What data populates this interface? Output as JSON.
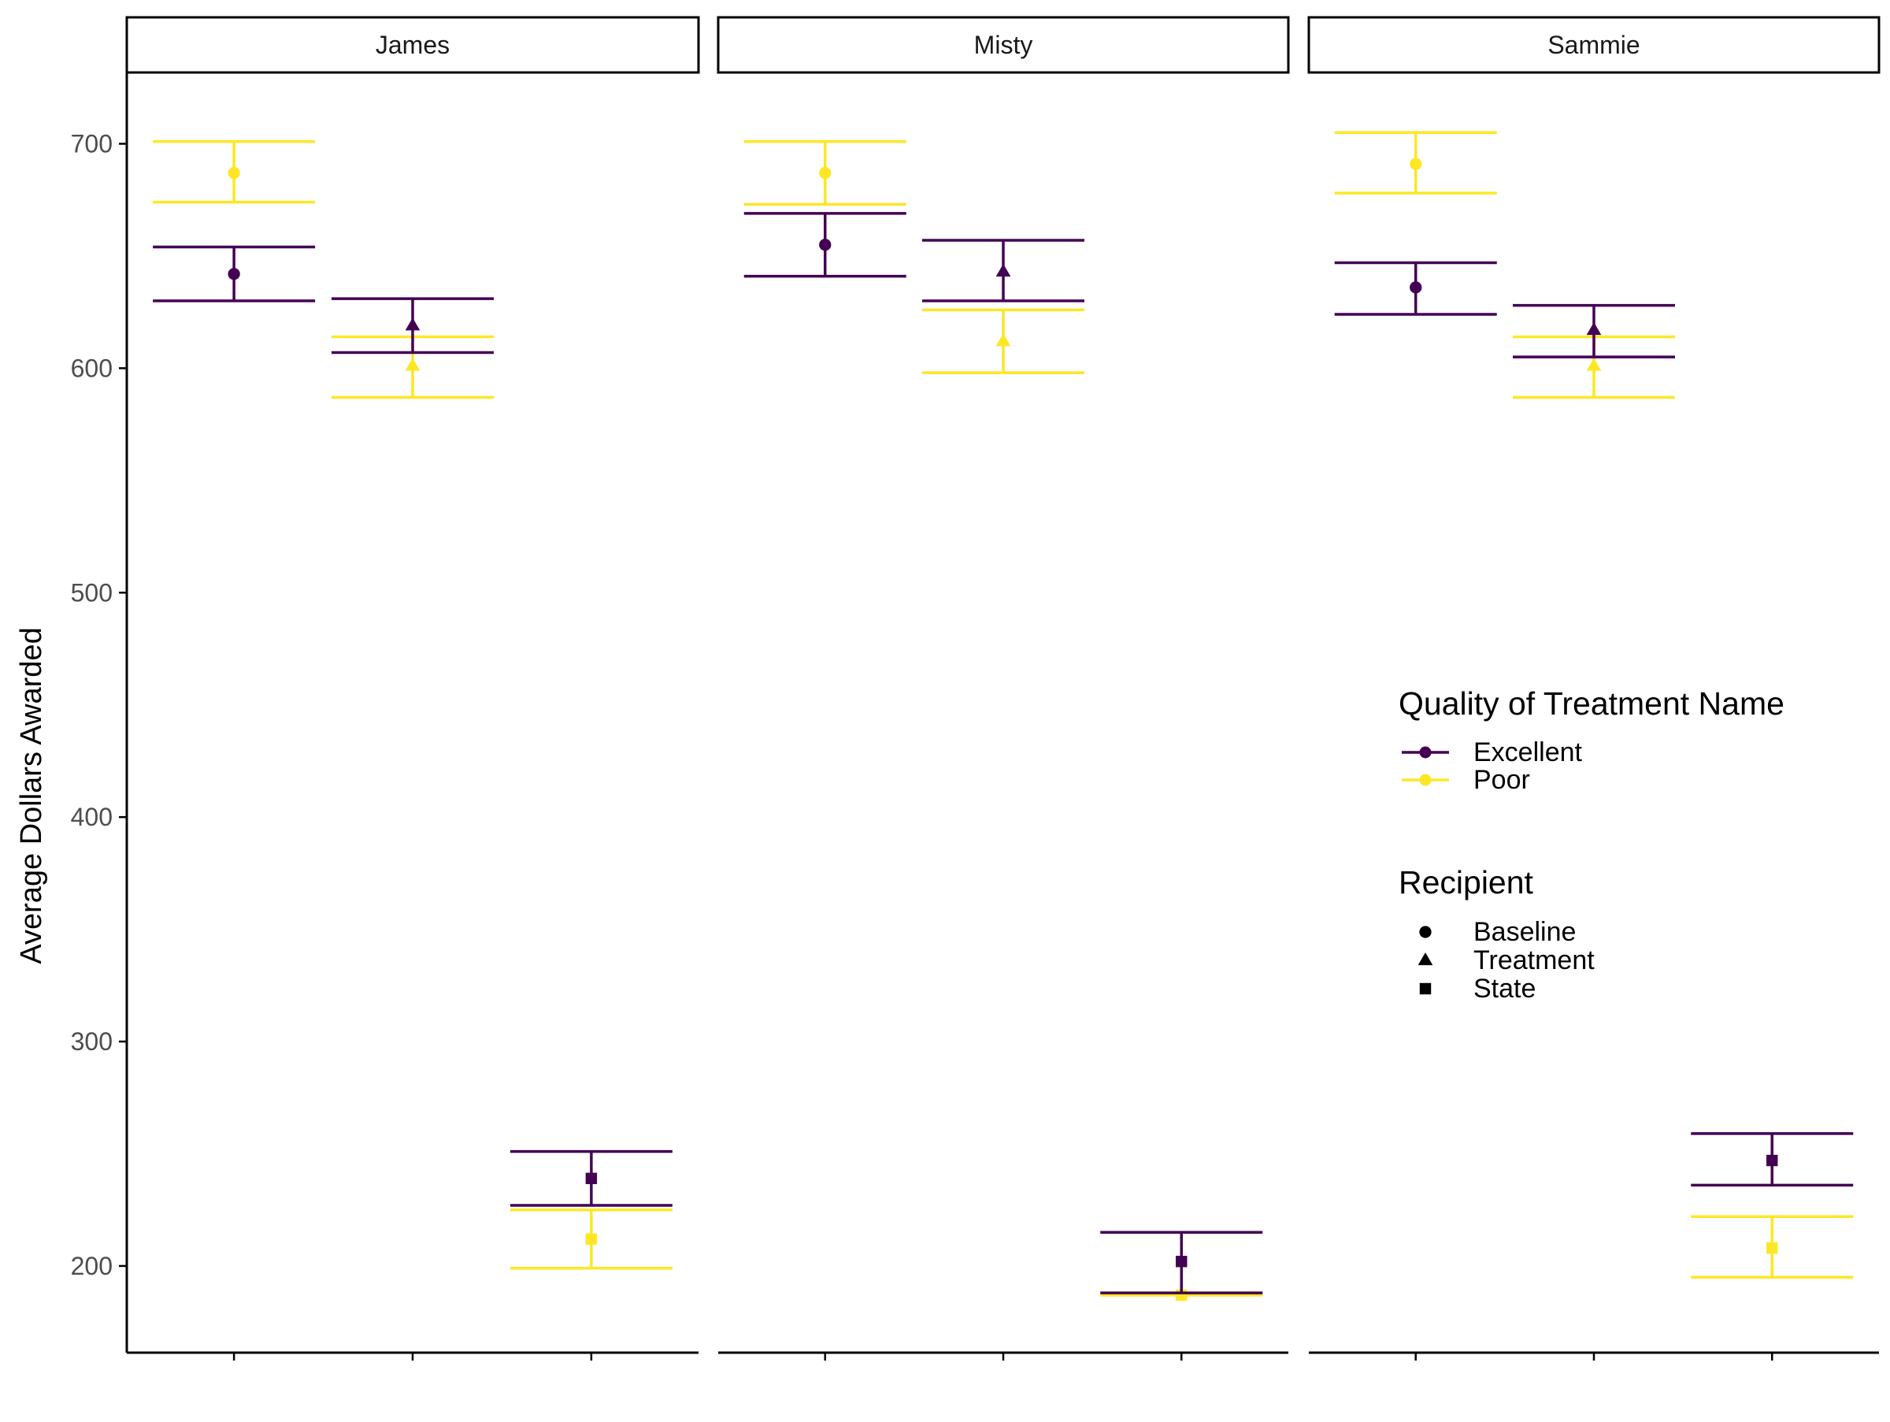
{
  "chart_data": {
    "type": "scatter",
    "subtype": "point with error bars, faceted",
    "ylabel": "Average Dollars Awarded",
    "xlabel": "",
    "ylim": [
      160,
      730
    ],
    "yticks": [
      200,
      300,
      400,
      500,
      600,
      700
    ],
    "grid": false,
    "facets": [
      "James",
      "Misty",
      "Sammie"
    ],
    "categories": [
      "Baseline",
      "Treatment",
      "State"
    ],
    "colors": {
      "Excellent": "#440154",
      "Poor": "#FDE725"
    },
    "shapes": {
      "Baseline": "circle",
      "Treatment": "triangle",
      "State": "square"
    },
    "legend": {
      "placement": "right-inside",
      "color_title": "Quality of Treatment Name",
      "color_items": [
        "Excellent",
        "Poor"
      ],
      "shape_title": "Recipient",
      "shape_items": [
        "Baseline",
        "Treatment",
        "State"
      ]
    },
    "points": [
      {
        "facet": "James",
        "recipient": "Baseline",
        "quality": "Poor",
        "y": 687,
        "ymin": 674,
        "ymax": 701
      },
      {
        "facet": "James",
        "recipient": "Baseline",
        "quality": "Excellent",
        "y": 642,
        "ymin": 630,
        "ymax": 654
      },
      {
        "facet": "James",
        "recipient": "Treatment",
        "quality": "Poor",
        "y": 601,
        "ymin": 587,
        "ymax": 614
      },
      {
        "facet": "James",
        "recipient": "Treatment",
        "quality": "Excellent",
        "y": 619,
        "ymin": 607,
        "ymax": 631
      },
      {
        "facet": "James",
        "recipient": "State",
        "quality": "Poor",
        "y": 212,
        "ymin": 199,
        "ymax": 225
      },
      {
        "facet": "James",
        "recipient": "State",
        "quality": "Excellent",
        "y": 239,
        "ymin": 227,
        "ymax": 251
      },
      {
        "facet": "Misty",
        "recipient": "Baseline",
        "quality": "Poor",
        "y": 687,
        "ymin": 673,
        "ymax": 701
      },
      {
        "facet": "Misty",
        "recipient": "Baseline",
        "quality": "Excellent",
        "y": 655,
        "ymin": 641,
        "ymax": 669
      },
      {
        "facet": "Misty",
        "recipient": "Treatment",
        "quality": "Poor",
        "y": 612,
        "ymin": 598,
        "ymax": 626
      },
      {
        "facet": "Misty",
        "recipient": "Treatment",
        "quality": "Excellent",
        "y": 643,
        "ymin": 630,
        "ymax": 657
      },
      {
        "facet": "Misty",
        "recipient": "State",
        "quality": "Poor",
        "y": 187,
        "ymin": 187,
        "ymax": 188
      },
      {
        "facet": "Misty",
        "recipient": "State",
        "quality": "Excellent",
        "y": 202,
        "ymin": 188,
        "ymax": 215
      },
      {
        "facet": "Sammie",
        "recipient": "Baseline",
        "quality": "Poor",
        "y": 691,
        "ymin": 678,
        "ymax": 705
      },
      {
        "facet": "Sammie",
        "recipient": "Baseline",
        "quality": "Excellent",
        "y": 636,
        "ymin": 624,
        "ymax": 647
      },
      {
        "facet": "Sammie",
        "recipient": "Treatment",
        "quality": "Poor",
        "y": 601,
        "ymin": 587,
        "ymax": 614
      },
      {
        "facet": "Sammie",
        "recipient": "Treatment",
        "quality": "Excellent",
        "y": 617,
        "ymin": 605,
        "ymax": 628
      },
      {
        "facet": "Sammie",
        "recipient": "State",
        "quality": "Poor",
        "y": 208,
        "ymin": 195,
        "ymax": 222
      },
      {
        "facet": "Sammie",
        "recipient": "State",
        "quality": "Excellent",
        "y": 247,
        "ymin": 236,
        "ymax": 259
      }
    ]
  }
}
